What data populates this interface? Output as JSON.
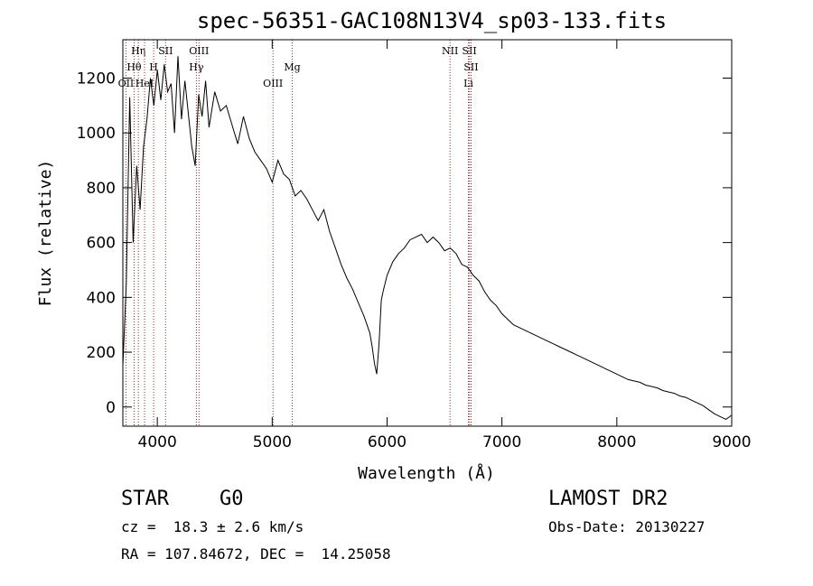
{
  "chart_data": {
    "type": "line",
    "title": "spec-56351-GAC108N13V4_sp03-133.fits",
    "xlabel": "Wavelength (Å)",
    "ylabel": "Flux (relative)",
    "xlim": [
      3700,
      9000
    ],
    "ylim": [
      -70,
      1340
    ],
    "x_ticks": [
      4000,
      5000,
      6000,
      7000,
      8000,
      9000
    ],
    "y_ticks": [
      0,
      200,
      400,
      600,
      800,
      1000,
      1200
    ],
    "x_tick_labels": [
      "4000",
      "5000",
      "6000",
      "7000",
      "8000",
      "9000"
    ],
    "y_tick_labels": [
      "0",
      "200",
      "400",
      "600",
      "800",
      "1000",
      "1200"
    ],
    "grid": false,
    "line_color": "#000000",
    "marker_line_color": "#b22222",
    "series": [
      {
        "x": [
          3700,
          3730,
          3760,
          3790,
          3820,
          3850,
          3880,
          3910,
          3940,
          3970,
          4000,
          4030,
          4060,
          4090,
          4120,
          4150,
          4180,
          4210,
          4240,
          4270,
          4300,
          4330,
          4360,
          4390,
          4420,
          4450,
          4500,
          4550,
          4600,
          4650,
          4700,
          4750,
          4800,
          4850,
          4900,
          4950,
          5000,
          5050,
          5100,
          5150,
          5200,
          5250,
          5300,
          5350,
          5400,
          5450,
          5500,
          5550,
          5600,
          5650,
          5700,
          5750,
          5800,
          5850,
          5870,
          5890,
          5910,
          5930,
          5950,
          5970,
          6000,
          6050,
          6100,
          6150,
          6200,
          6250,
          6300,
          6350,
          6400,
          6450,
          6500,
          6550,
          6600,
          6650,
          6700,
          6750,
          6800,
          6850,
          6900,
          6950,
          7000,
          7050,
          7100,
          7150,
          7200,
          7250,
          7300,
          7350,
          7400,
          7450,
          7500,
          7550,
          7600,
          7650,
          7700,
          7750,
          7800,
          7850,
          7900,
          7950,
          8000,
          8050,
          8100,
          8150,
          8200,
          8250,
          8300,
          8350,
          8400,
          8450,
          8500,
          8550,
          8600,
          8650,
          8700,
          8750,
          8800,
          8850,
          8900,
          8950,
          9000
        ],
        "y": [
          150,
          450,
          1130,
          600,
          880,
          720,
          950,
          1050,
          1200,
          1100,
          1230,
          1120,
          1250,
          1150,
          1180,
          1000,
          1280,
          1050,
          1190,
          1070,
          950,
          880,
          1140,
          1060,
          1190,
          1020,
          1150,
          1080,
          1100,
          1030,
          960,
          1060,
          980,
          930,
          900,
          870,
          820,
          900,
          850,
          830,
          770,
          790,
          760,
          720,
          680,
          720,
          640,
          580,
          520,
          470,
          430,
          380,
          330,
          270,
          220,
          160,
          120,
          230,
          390,
          430,
          480,
          530,
          560,
          580,
          610,
          620,
          630,
          600,
          620,
          600,
          570,
          580,
          560,
          520,
          510,
          480,
          460,
          420,
          390,
          370,
          340,
          320,
          300,
          290,
          280,
          270,
          260,
          250,
          240,
          230,
          220,
          210,
          200,
          190,
          180,
          170,
          160,
          150,
          140,
          130,
          120,
          110,
          100,
          95,
          90,
          80,
          75,
          70,
          60,
          55,
          50,
          40,
          35,
          25,
          15,
          5,
          -10,
          -25,
          -35,
          -45,
          -30
        ]
      }
    ],
    "line_markers": [
      {
        "label": "Hη",
        "x": 3835,
        "row": 0
      },
      {
        "label": "Hθ",
        "x": 3798,
        "row": 1
      },
      {
        "label": "OII",
        "x": 3727,
        "row": 2
      },
      {
        "label": "HeI",
        "x": 3889,
        "row": 2
      },
      {
        "label": "SII",
        "x": 4072,
        "row": 0
      },
      {
        "label": "H",
        "x": 3968,
        "row": 1
      },
      {
        "label": "OIII",
        "x": 4363,
        "row": 0
      },
      {
        "label": "Hγ",
        "x": 4340,
        "row": 1
      },
      {
        "label": "Mg",
        "x": 5175,
        "row": 1
      },
      {
        "label": "OIII",
        "x": 5007,
        "row": 2
      },
      {
        "label": "NII",
        "x": 6548,
        "row": 0
      },
      {
        "label": "SII",
        "x": 6717,
        "row": 0
      },
      {
        "label": "SII",
        "x": 6731,
        "row": 1
      },
      {
        "label": "Li",
        "x": 6708,
        "row": 2
      }
    ]
  },
  "info": {
    "object_class": "STAR",
    "subclass": "G0",
    "survey": "LAMOST DR2",
    "redshift": "cz =  18.3 ± 2.6 km/s",
    "obs_date": "Obs-Date: 20130227",
    "coords": "RA = 107.84672, DEC =  14.25058"
  }
}
